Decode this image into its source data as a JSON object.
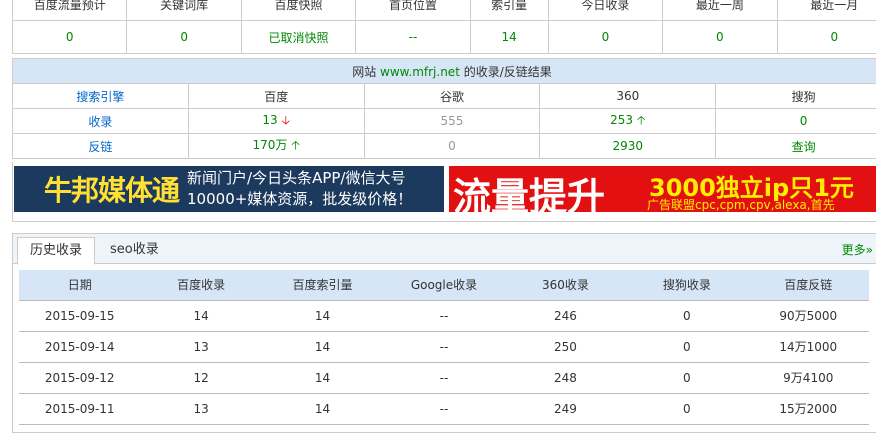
{
  "summary": {
    "headers": [
      "百度流量预计",
      "关键词库",
      "百度快照",
      "首页位置",
      "索引量",
      "今日收录",
      "最近一周",
      "最近一月"
    ],
    "values": [
      "0",
      "0",
      "已取消快照",
      "--",
      "14",
      "0",
      "0",
      "0"
    ]
  },
  "result": {
    "title_prefix": "网站",
    "domain": "www.mfrj.net",
    "title_suffix": "的收录/反链结果",
    "headers": [
      "搜索引擎",
      "百度",
      "谷歌",
      "360",
      "搜狗"
    ],
    "rows": [
      {
        "label": "收录",
        "values": [
          "13",
          "555",
          "253",
          "0"
        ],
        "trend": [
          "down",
          "",
          "up",
          ""
        ]
      },
      {
        "label": "反链",
        "values": [
          "170万",
          "0",
          "2930",
          "查询"
        ],
        "trend": [
          "up",
          "",
          "",
          ""
        ]
      }
    ]
  },
  "ads": {
    "left_logo": "牛邦媒体通",
    "left_line1": "新闻门户/今日头条APP/微信大号",
    "left_line2": "10000+媒体资源，批发级价格！",
    "right_big": "流量提升",
    "right_line1": "3000独立ip只1元",
    "right_line2": "广告联盟cpc,cpm,cpv,alexa,首先"
  },
  "history": {
    "tabs": [
      "历史收录",
      "seo收录"
    ],
    "more": "更多»",
    "headers": [
      "日期",
      "百度收录",
      "百度索引量",
      "Google收录",
      "360收录",
      "搜狗收录",
      "百度反链"
    ],
    "rows": [
      [
        "2015-09-15",
        "14",
        "14",
        "--",
        "246",
        "0",
        "90万5000"
      ],
      [
        "2015-09-14",
        "13",
        "14",
        "--",
        "250",
        "0",
        "14万1000"
      ],
      [
        "2015-09-12",
        "12",
        "14",
        "--",
        "248",
        "0",
        "9万4100"
      ],
      [
        "2015-09-11",
        "13",
        "14",
        "--",
        "249",
        "0",
        "15万2000"
      ]
    ]
  },
  "colors": {
    "green": "#008800",
    "blue": "#0066cc",
    "header_bg": "#d6e6f7",
    "red": "#e00000"
  }
}
